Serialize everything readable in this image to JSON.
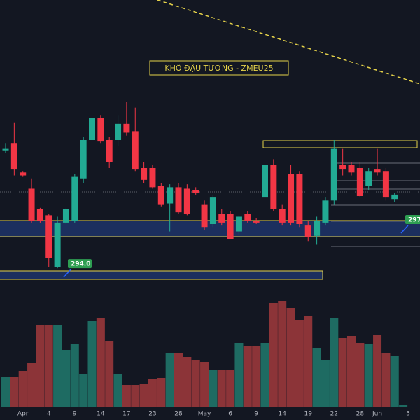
{
  "chart_data": {
    "type": "candlestick",
    "title": "KHÔ ĐẬU TƯƠNG - ZMEU25",
    "categories": [
      null,
      null,
      "Apr",
      null,
      null,
      "4",
      null,
      null,
      "9",
      null,
      null,
      "14",
      null,
      null,
      "17",
      null,
      null,
      "23",
      null,
      null,
      "28",
      null,
      null,
      "May",
      null,
      null,
      "6",
      null,
      null,
      "9",
      null,
      null,
      "14",
      null,
      null,
      "19",
      null,
      null,
      "22",
      null,
      null,
      "28",
      null,
      "Jun",
      null,
      null,
      "5"
    ],
    "open": [
      302.0,
      302.5,
      300.5,
      299.4,
      298.0,
      297.6,
      294.1,
      297.1,
      297.2,
      300.1,
      302.7,
      304.2,
      302.7,
      302.7,
      303.8,
      303.3,
      300.8,
      300.8,
      299.6,
      298.4,
      299.5,
      299.4,
      299.3,
      298.3,
      297.0,
      297.7,
      297.7,
      296.5,
      297.7,
      297.2,
      298.8,
      301.0,
      298.0,
      300.4,
      300.4,
      296.9,
      296.2,
      297.1,
      298.6,
      301.0,
      301.0,
      300.8,
      299.6,
      300.7,
      300.6,
      298.7,
      null
    ],
    "high": [
      302.5,
      303.9,
      300.6,
      300.1,
      298.1,
      297.7,
      297.5,
      298.1,
      300.4,
      302.9,
      305.7,
      304.4,
      302.9,
      304.4,
      305.3,
      304.9,
      301.2,
      301.0,
      299.8,
      299.7,
      299.8,
      299.7,
      299.5,
      298.6,
      299.0,
      298.0,
      297.9,
      297.6,
      297.9,
      297.4,
      301.2,
      301.4,
      298.3,
      301.0,
      300.6,
      297.2,
      297.5,
      298.8,
      302.7,
      302.1,
      301.2,
      301.2,
      300.8,
      302.1,
      300.8,
      299.1,
      null
    ],
    "low": [
      301.8,
      300.3,
      300.2,
      297.1,
      297.1,
      294.1,
      294.0,
      297.0,
      297.1,
      299.8,
      302.5,
      302.5,
      300.8,
      302.3,
      303.0,
      300.6,
      299.8,
      299.4,
      298.2,
      296.5,
      297.7,
      297.6,
      299.0,
      296.6,
      296.8,
      296.9,
      296.0,
      296.3,
      297.1,
      297.0,
      298.6,
      297.9,
      296.9,
      296.9,
      296.8,
      295.8,
      295.6,
      296.9,
      298.3,
      300.3,
      300.3,
      298.8,
      299.3,
      300.3,
      298.6,
      298.5,
      null
    ],
    "close": [
      302.1,
      300.7,
      300.3,
      297.2,
      297.2,
      294.7,
      297.1,
      298.0,
      300.2,
      302.7,
      304.2,
      302.6,
      301.2,
      303.8,
      303.2,
      300.7,
      300.0,
      299.5,
      298.3,
      299.5,
      297.8,
      297.7,
      299.1,
      296.8,
      298.8,
      297.1,
      296.0,
      297.5,
      297.2,
      297.1,
      301.0,
      298.0,
      297.1,
      297.1,
      297.0,
      296.1,
      297.2,
      298.6,
      302.1,
      300.7,
      300.5,
      298.9,
      300.6,
      300.5,
      298.8,
      299.0,
      null
    ],
    "volume": [
      44,
      44,
      52,
      64,
      117,
      117,
      117,
      82,
      90,
      47,
      124,
      127,
      95,
      47,
      32,
      32,
      34,
      40,
      42,
      77,
      77,
      72,
      67,
      65,
      54,
      54,
      54,
      92,
      87,
      87,
      92,
      149,
      152,
      142,
      125,
      130,
      85,
      67,
      127,
      99,
      102,
      92,
      90,
      104,
      77,
      74,
      4
    ],
    "ylim": [
      283.7,
      312.2
    ],
    "volume_ylim": [
      0,
      200
    ],
    "up_color": "#22ab94",
    "down_color": "#f23645",
    "volume_up_color": "#1e6b62",
    "volume_down_color": "#8c3438",
    "level_labels": [
      {
        "value": 294.0,
        "label": "294.0"
      },
      297
    ]
  }
}
